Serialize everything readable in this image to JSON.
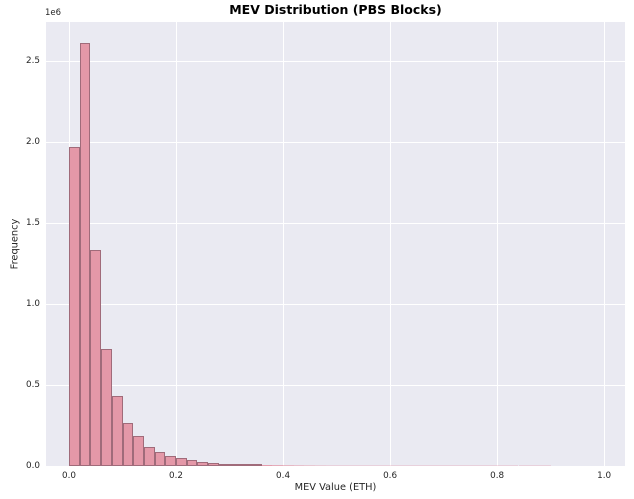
{
  "chart_data": {
    "type": "bar",
    "subtype": "histogram",
    "title": "MEV Distribution (PBS Blocks)",
    "xlabel": "MEV Value (ETH)",
    "ylabel": "Frequency",
    "y_offset_text": "1e6",
    "bin_start": 0.0,
    "bin_width": 0.02,
    "values": [
      1970000,
      2610000,
      1330000,
      722000,
      432000,
      267000,
      185000,
      119000,
      86000,
      64000,
      48000,
      35000,
      25000,
      19000,
      14500,
      11500,
      9000,
      7200,
      5800,
      4700,
      3800,
      3100,
      2600,
      2100,
      1800,
      1500,
      1250,
      1050,
      900,
      750,
      640,
      540,
      460,
      390,
      330,
      280,
      240,
      200,
      170,
      145,
      120,
      100,
      85,
      70,
      60
    ],
    "xlim": [
      -0.043,
      1.039
    ],
    "ylim": [
      0,
      2740000
    ],
    "x_ticks": [
      {
        "value": 0.0,
        "label": "0.0"
      },
      {
        "value": 0.2,
        "label": "0.2"
      },
      {
        "value": 0.4,
        "label": "0.4"
      },
      {
        "value": 0.6,
        "label": "0.6"
      },
      {
        "value": 0.8,
        "label": "0.8"
      },
      {
        "value": 1.0,
        "label": "1.0"
      }
    ],
    "y_ticks": [
      {
        "value": 0,
        "label": "0.0"
      },
      {
        "value": 500000,
        "label": "0.5"
      },
      {
        "value": 1000000,
        "label": "1.0"
      },
      {
        "value": 1500000,
        "label": "1.5"
      },
      {
        "value": 2000000,
        "label": "2.0"
      },
      {
        "value": 2500000,
        "label": "2.5"
      }
    ],
    "grid": true,
    "legend": false,
    "style": {
      "figure_background": "#ffffff",
      "axes_background": "#eaeaf2",
      "grid_color": "#ffffff",
      "bar_fill": "#e498a8",
      "bar_edge": "#a06b7a",
      "text_color": "#262626",
      "title_color": "#000000"
    }
  }
}
